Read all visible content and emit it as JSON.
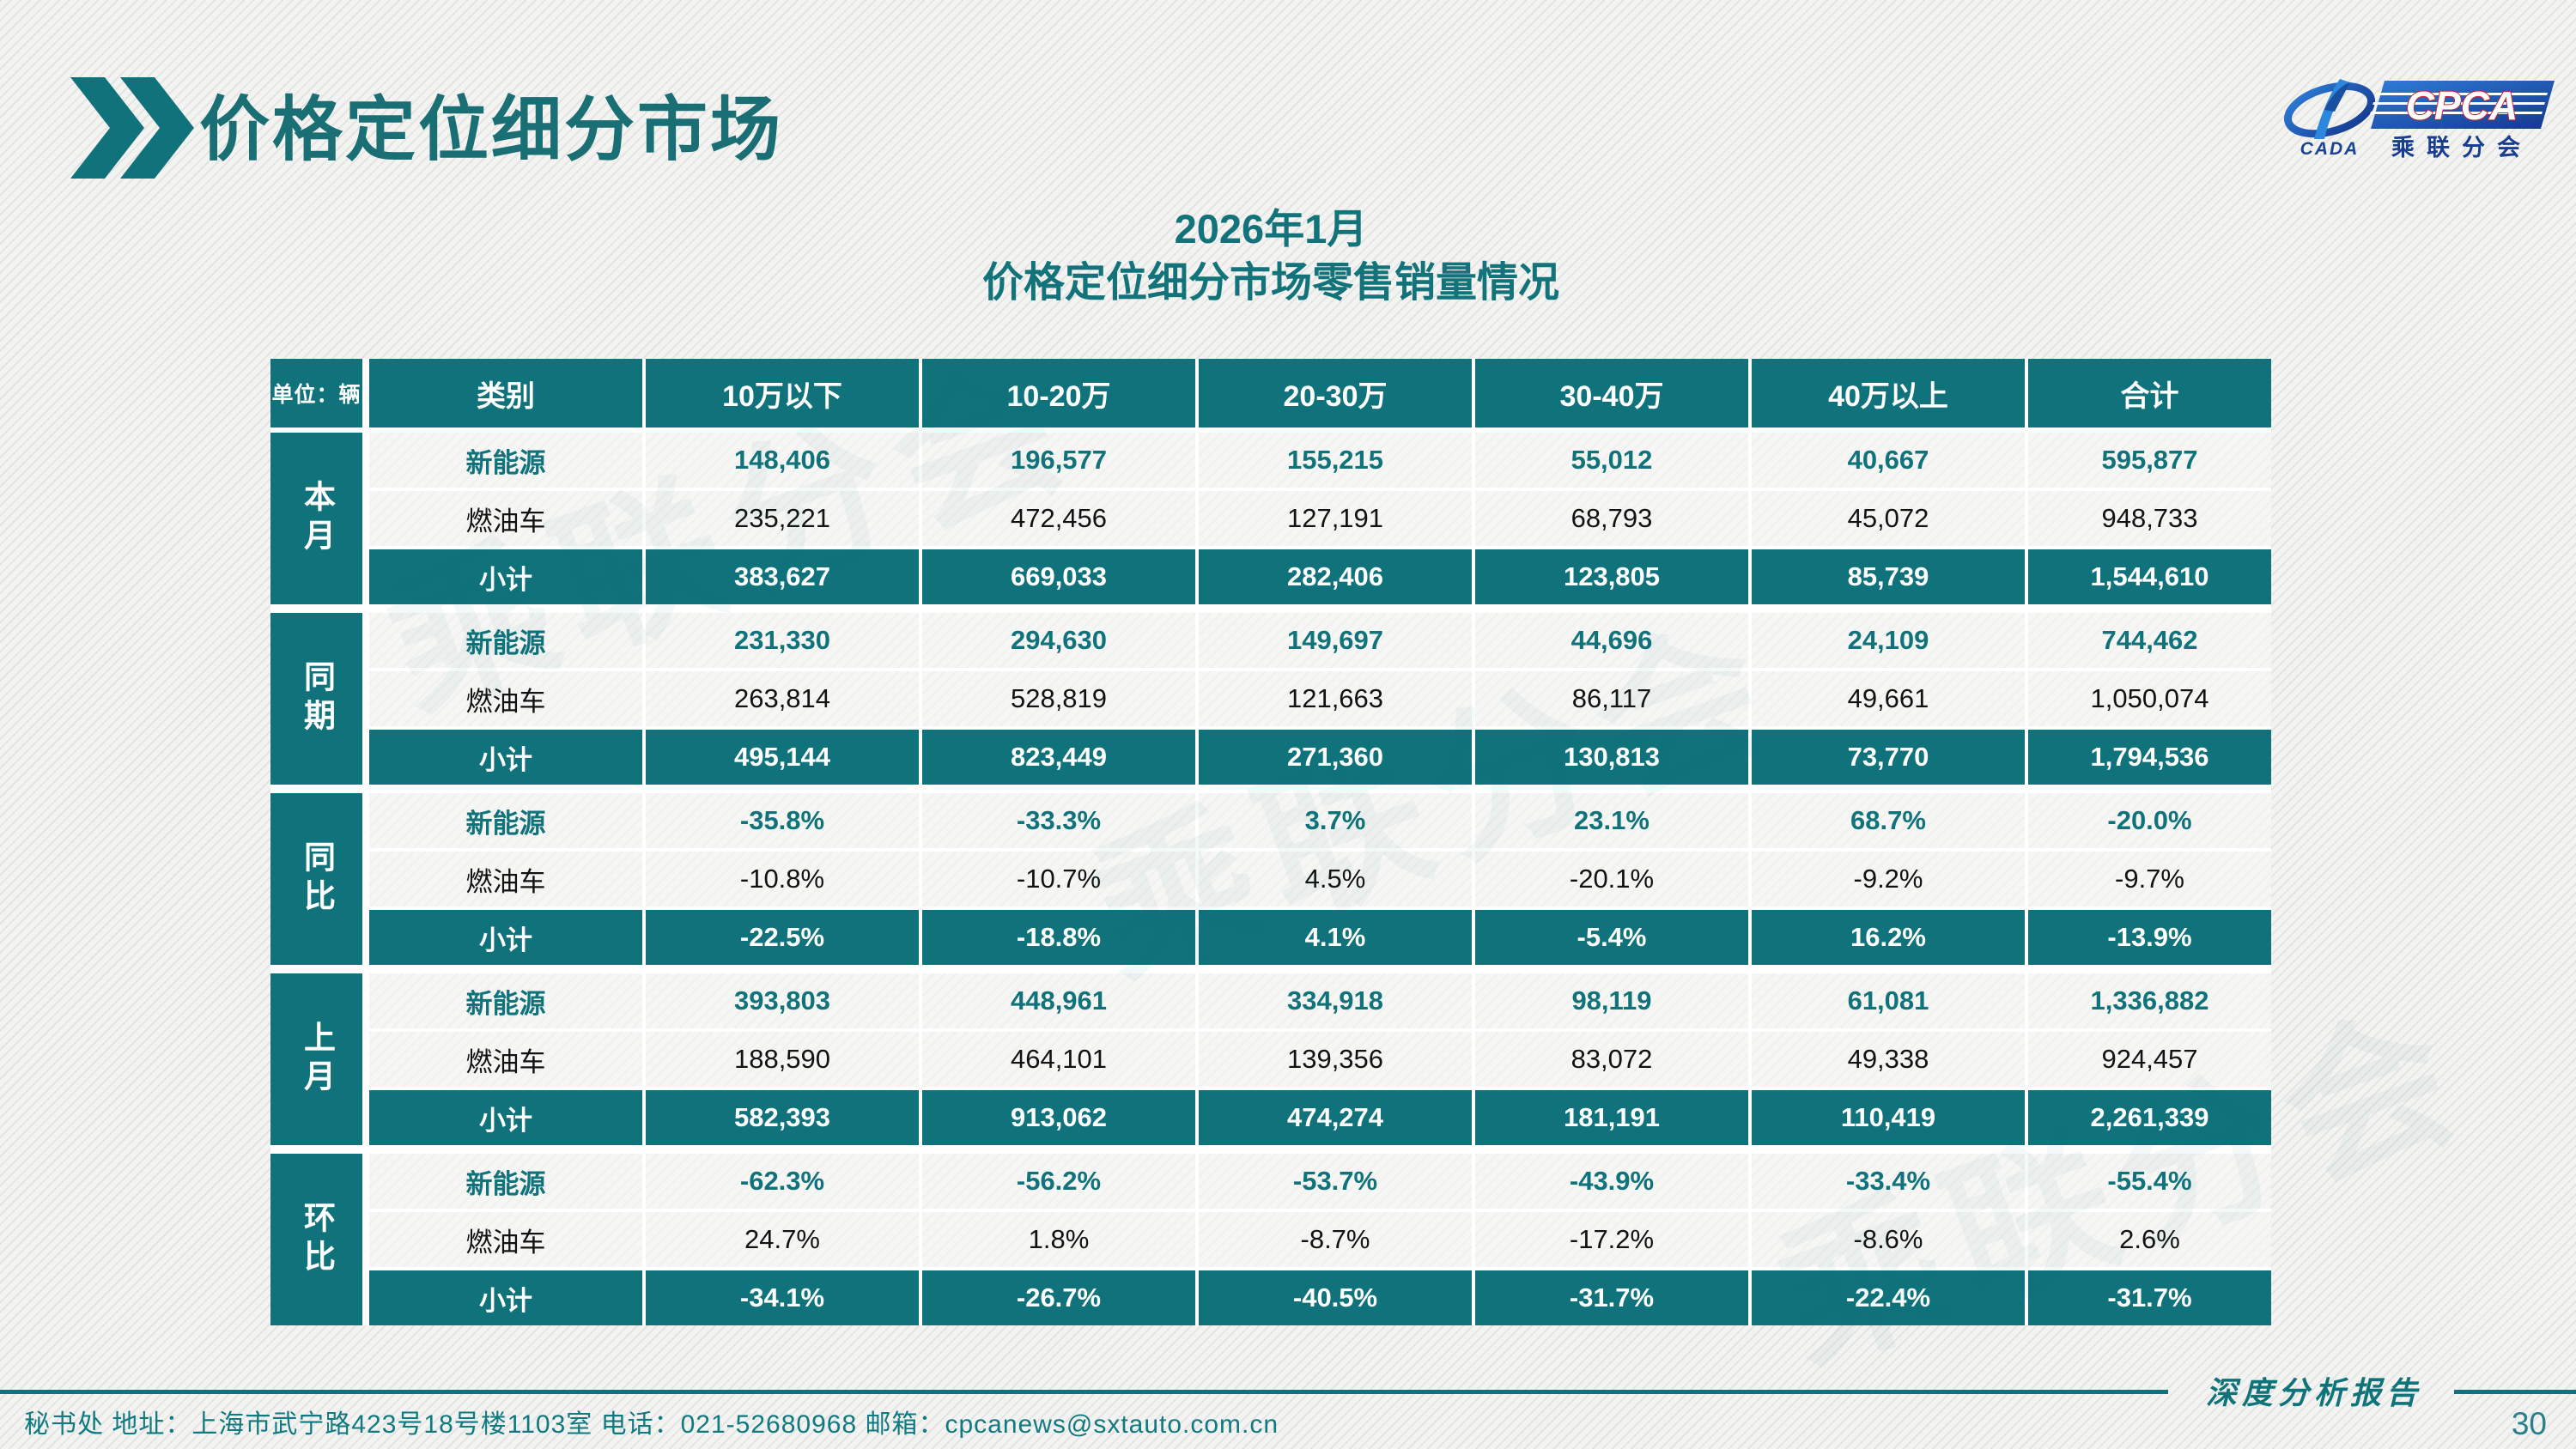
{
  "slide": {
    "title": "价格定位细分市场",
    "subtitle_line1": "2026年1月",
    "subtitle_line2": "价格定位细分市场零售销量情况",
    "report_label": "深度分析报告",
    "page_number": "30",
    "footer": "秘书处  地址：上海市武宁路423号18号楼1103室 电话：021-52680968  邮箱：cpcanews@sxtauto.com.cn",
    "watermark": "乘联分会"
  },
  "logo": {
    "cpca": "CPCA",
    "cada": "CADA",
    "association": "乘联分会"
  },
  "table": {
    "unit_label": "单位：辆",
    "columns": [
      "类别",
      "10万以下",
      "10-20万",
      "20-30万",
      "30-40万",
      "40万以上",
      "合计"
    ],
    "groups": [
      {
        "label": "本月",
        "rows": [
          {
            "category": "新能源",
            "style": "nev",
            "values": [
              "148,406",
              "196,577",
              "155,215",
              "55,012",
              "40,667",
              "595,877"
            ]
          },
          {
            "category": "燃油车",
            "style": "ice",
            "values": [
              "235,221",
              "472,456",
              "127,191",
              "68,793",
              "45,072",
              "948,733"
            ]
          },
          {
            "category": "小计",
            "style": "sub",
            "values": [
              "383,627",
              "669,033",
              "282,406",
              "123,805",
              "85,739",
              "1,544,610"
            ]
          }
        ]
      },
      {
        "label": "同期",
        "rows": [
          {
            "category": "新能源",
            "style": "nev",
            "values": [
              "231,330",
              "294,630",
              "149,697",
              "44,696",
              "24,109",
              "744,462"
            ]
          },
          {
            "category": "燃油车",
            "style": "ice",
            "values": [
              "263,814",
              "528,819",
              "121,663",
              "86,117",
              "49,661",
              "1,050,074"
            ]
          },
          {
            "category": "小计",
            "style": "sub",
            "values": [
              "495,144",
              "823,449",
              "271,360",
              "130,813",
              "73,770",
              "1,794,536"
            ]
          }
        ]
      },
      {
        "label": "同比",
        "rows": [
          {
            "category": "新能源",
            "style": "nev",
            "values": [
              "-35.8%",
              "-33.3%",
              "3.7%",
              "23.1%",
              "68.7%",
              "-20.0%"
            ]
          },
          {
            "category": "燃油车",
            "style": "ice",
            "values": [
              "-10.8%",
              "-10.7%",
              "4.5%",
              "-20.1%",
              "-9.2%",
              "-9.7%"
            ]
          },
          {
            "category": "小计",
            "style": "sub",
            "values": [
              "-22.5%",
              "-18.8%",
              "4.1%",
              "-5.4%",
              "16.2%",
              "-13.9%"
            ]
          }
        ]
      },
      {
        "label": "上月",
        "rows": [
          {
            "category": "新能源",
            "style": "nev",
            "values": [
              "393,803",
              "448,961",
              "334,918",
              "98,119",
              "61,081",
              "1,336,882"
            ]
          },
          {
            "category": "燃油车",
            "style": "ice",
            "values": [
              "188,590",
              "464,101",
              "139,356",
              "83,072",
              "49,338",
              "924,457"
            ]
          },
          {
            "category": "小计",
            "style": "sub",
            "values": [
              "582,393",
              "913,062",
              "474,274",
              "181,191",
              "110,419",
              "2,261,339"
            ]
          }
        ]
      },
      {
        "label": "环比",
        "rows": [
          {
            "category": "新能源",
            "style": "nev",
            "values": [
              "-62.3%",
              "-56.2%",
              "-53.7%",
              "-43.9%",
              "-33.4%",
              "-55.4%"
            ]
          },
          {
            "category": "燃油车",
            "style": "ice",
            "values": [
              "24.7%",
              "1.8%",
              "-8.7%",
              "-17.2%",
              "-8.6%",
              "2.6%"
            ]
          },
          {
            "category": "小计",
            "style": "sub",
            "values": [
              "-34.1%",
              "-26.7%",
              "-40.5%",
              "-31.7%",
              "-22.4%",
              "-31.7%"
            ]
          }
        ]
      }
    ]
  },
  "colors": {
    "accent_teal": "#10737c",
    "title_teal": "#1a6f75",
    "logo_blue": "#1b4fa0",
    "logo_dark_blue": "#1a3e8f",
    "logo_red": "#d3262b",
    "footer_teal": "#0f7a80",
    "background": "#f3f3f1"
  }
}
